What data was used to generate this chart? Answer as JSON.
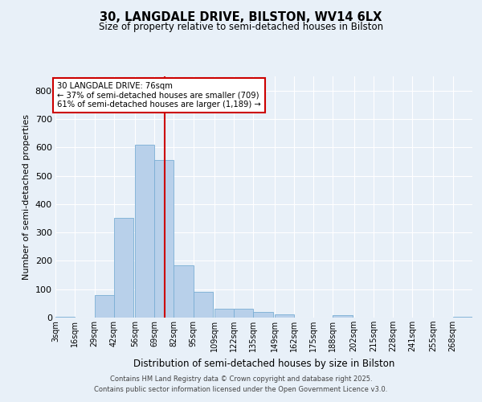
{
  "title1": "30, LANGDALE DRIVE, BILSTON, WV14 6LX",
  "title2": "Size of property relative to semi-detached houses in Bilston",
  "xlabel": "Distribution of semi-detached houses by size in Bilston",
  "ylabel": "Number of semi-detached properties",
  "property_size": 76,
  "property_label": "30 LANGDALE DRIVE: 76sqm",
  "pct_smaller": 37,
  "count_smaller": 709,
  "pct_larger": 61,
  "count_larger": 1189,
  "footnote1": "Contains HM Land Registry data © Crown copyright and database right 2025.",
  "footnote2": "Contains public sector information licensed under the Open Government Licence v3.0.",
  "bin_labels": [
    "3sqm",
    "16sqm",
    "29sqm",
    "42sqm",
    "56sqm",
    "69sqm",
    "82sqm",
    "95sqm",
    "109sqm",
    "122sqm",
    "135sqm",
    "149sqm",
    "162sqm",
    "175sqm",
    "188sqm",
    "202sqm",
    "215sqm",
    "228sqm",
    "241sqm",
    "255sqm",
    "268sqm"
  ],
  "bin_left_edges": [
    3,
    16,
    29,
    42,
    56,
    69,
    82,
    95,
    109,
    122,
    135,
    149,
    162,
    175,
    188,
    202,
    215,
    228,
    241,
    255,
    268
  ],
  "bin_values": [
    2,
    0,
    80,
    350,
    610,
    555,
    185,
    90,
    32,
    30,
    20,
    12,
    0,
    0,
    8,
    0,
    0,
    0,
    0,
    0,
    2
  ],
  "bar_color": "#b8d0ea",
  "bar_edgecolor": "#7aaed4",
  "vline_color": "#cc0000",
  "box_facecolor": "#ffffff",
  "box_edgecolor": "#cc0000",
  "background_color": "#e8f0f8",
  "grid_color": "#ffffff",
  "ylim": [
    0,
    850
  ],
  "yticks": [
    0,
    100,
    200,
    300,
    400,
    500,
    600,
    700,
    800
  ]
}
